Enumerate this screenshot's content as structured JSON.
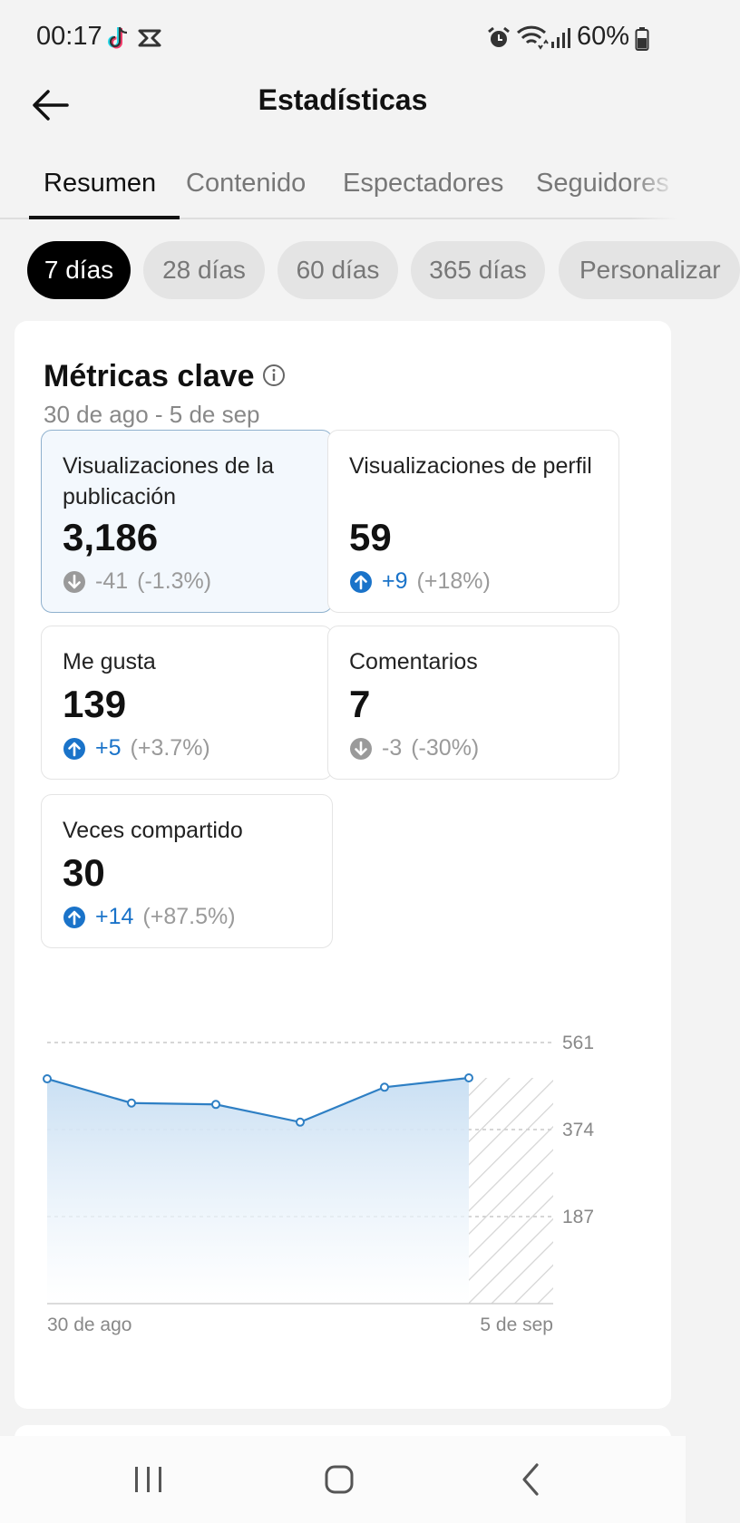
{
  "status_bar": {
    "time": "00:17",
    "battery": "60%",
    "icons": [
      "tiktok-icon",
      "capcut-icon",
      "alarm-icon",
      "wifi-icon",
      "signal-icon",
      "battery-icon"
    ]
  },
  "header": {
    "title": "Estadísticas"
  },
  "tabs": [
    {
      "label": "Resumen",
      "active": true
    },
    {
      "label": "Contenido"
    },
    {
      "label": "Espectadores"
    },
    {
      "label": "Seguidores"
    }
  ],
  "ranges": [
    {
      "label": "7 días",
      "active": true
    },
    {
      "label": "28 días"
    },
    {
      "label": "60 días"
    },
    {
      "label": "365 días"
    },
    {
      "label": "Personalizar"
    }
  ],
  "key_metrics": {
    "title": "Métricas clave",
    "date_range": "30 de ago - 5 de sep",
    "items": [
      {
        "label": "Visualizaciones de la publicación",
        "value": "3,186",
        "delta": "-41",
        "pct": "(-1.3%)",
        "direction": "down",
        "selected": true
      },
      {
        "label": "Visualizaciones de perfil",
        "value": "59",
        "delta": "+9",
        "pct": "(+18%)",
        "direction": "up"
      },
      {
        "label": "Me gusta",
        "value": "139",
        "delta": "+5",
        "pct": "(+3.7%)",
        "direction": "up"
      },
      {
        "label": "Comentarios",
        "value": "7",
        "delta": "-3",
        "pct": "(-30%)",
        "direction": "down"
      },
      {
        "label": "Veces compartido",
        "value": "30",
        "delta": "+14",
        "pct": "(+87.5%)",
        "direction": "up"
      }
    ]
  },
  "colors": {
    "accent_up": "#1a73c9",
    "neutral_down": "#9a9a9a",
    "line": "#2e7fc4",
    "area_top": "#c9dff3",
    "selected_card": "#f3f8fd"
  },
  "chart_data": {
    "type": "area",
    "x": [
      "30 de ago",
      "31 de ago",
      "1 de sep",
      "2 de sep",
      "3 de sep",
      "4 de sep",
      "5 de sep"
    ],
    "values": [
      483,
      431,
      428,
      390,
      465,
      485,
      null
    ],
    "yticks": [
      187,
      374,
      561
    ],
    "ylim": [
      0,
      561
    ],
    "x_tick_labels": [
      "30 de ago",
      "5 de sep"
    ],
    "grid": "dashed horizontal",
    "incomplete_last_period": true
  }
}
